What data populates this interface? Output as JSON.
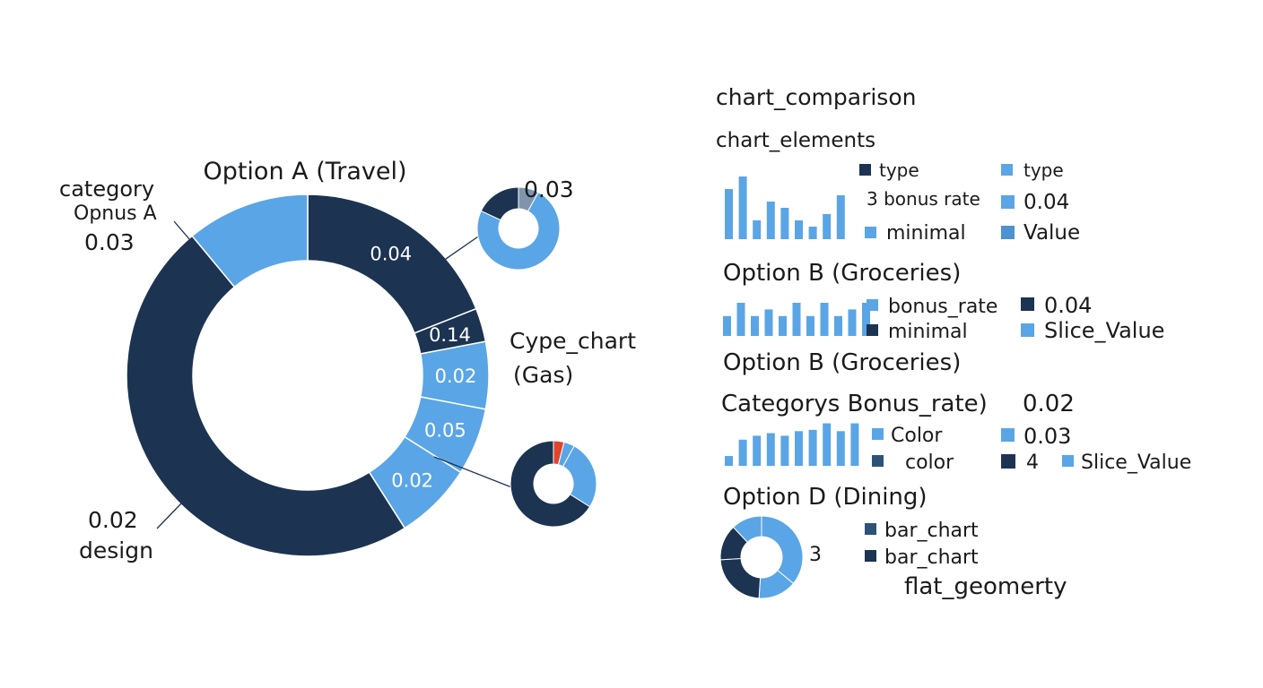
{
  "colors": {
    "dark": "#1c3352",
    "light": "#5aa5e6",
    "gray": "#7f95ab",
    "red": "#e0452b",
    "leader": "#1c3352",
    "background": "#ffffff"
  },
  "chart_data": [
    {
      "type": "pie",
      "variant": "donut",
      "title": "Option A (Travel)",
      "slices": [
        {
          "value": 19,
          "color": "dark",
          "label": "0.04"
        },
        {
          "value": 3,
          "color": "dark",
          "label": "0.14"
        },
        {
          "value": 6,
          "color": "light",
          "label": "0.02"
        },
        {
          "value": 6,
          "color": "light",
          "label": "0.05"
        },
        {
          "value": 7,
          "color": "light",
          "label": "0.02"
        },
        {
          "value": 48,
          "color": "dark",
          "label": ""
        },
        {
          "value": 11,
          "color": "light",
          "label": ""
        }
      ],
      "annotations": [
        {
          "lines": [
            "category",
            "Opnus A",
            "0.03"
          ]
        },
        {
          "lines": [
            "Cype_chart",
            "(Gas)"
          ]
        },
        {
          "lines": [
            "0.02",
            "design"
          ]
        }
      ]
    },
    {
      "type": "pie",
      "variant": "donut",
      "label": "0.03",
      "slices": [
        {
          "value": 8,
          "color": "gray"
        },
        {
          "value": 74,
          "color": "light"
        },
        {
          "value": 18,
          "color": "dark"
        }
      ]
    },
    {
      "type": "pie",
      "variant": "donut",
      "slices": [
        {
          "value": 4,
          "color": "red"
        },
        {
          "value": 4,
          "color": "light"
        },
        {
          "value": 26,
          "color": "light"
        },
        {
          "value": 66,
          "color": "dark"
        }
      ]
    },
    {
      "type": "bar",
      "values": [
        8,
        10,
        3,
        6,
        5,
        3,
        2,
        4,
        7
      ],
      "color": "light",
      "legend": [
        {
          "label": "type",
          "color": "dark"
        },
        {
          "label": "type",
          "color": "light"
        },
        {
          "label": "3 bonus rate",
          "color": ""
        },
        {
          "label": "0.04",
          "color": "light"
        },
        {
          "label": "minimal",
          "color": "light"
        },
        {
          "label": "Value",
          "color": "light"
        }
      ]
    },
    {
      "type": "bar",
      "title": "Option B (Groceries)",
      "values": [
        3,
        5,
        3,
        4,
        3,
        5,
        3,
        5,
        3,
        4,
        5
      ],
      "color": "light",
      "legend": [
        {
          "label": "bonus_rate",
          "color": "light"
        },
        {
          "label": "0.04",
          "color": "dark"
        },
        {
          "label": "minimal",
          "color": "dark"
        },
        {
          "label": "Slice_Value",
          "color": "light"
        }
      ]
    },
    {
      "type": "bar",
      "title": "Option B (Groceries)",
      "subtitle": "Categorys Bonus_rate)",
      "subtitle_value": "0.02",
      "values": [
        1.5,
        4,
        4.6,
        5,
        4.6,
        5.3,
        5.5,
        6.5,
        5.3,
        6.5
      ],
      "color": "light",
      "legend": [
        {
          "label": "Color",
          "color": "light"
        },
        {
          "label": "0.03",
          "color": "light"
        },
        {
          "label": "color",
          "color": "dark"
        },
        {
          "label": "4",
          "color": "dark"
        },
        {
          "label": "Slice_Value",
          "color": "light"
        }
      ]
    },
    {
      "type": "pie",
      "variant": "donut",
      "title": "Option D (Dining)",
      "label": "3",
      "slices": [
        {
          "value": 36,
          "color": "light"
        },
        {
          "value": 15,
          "color": "light"
        },
        {
          "value": 23,
          "color": "dark"
        },
        {
          "value": 14,
          "color": "dark"
        },
        {
          "value": 12,
          "color": "light"
        }
      ],
      "legend": [
        {
          "label": "bar_chart",
          "color": "dark"
        },
        {
          "label": "bar_chart",
          "color": "dark"
        }
      ],
      "note": "flat_geomerty"
    }
  ],
  "headings": {
    "main": "chart_comparison",
    "sub": "chart_elements"
  }
}
